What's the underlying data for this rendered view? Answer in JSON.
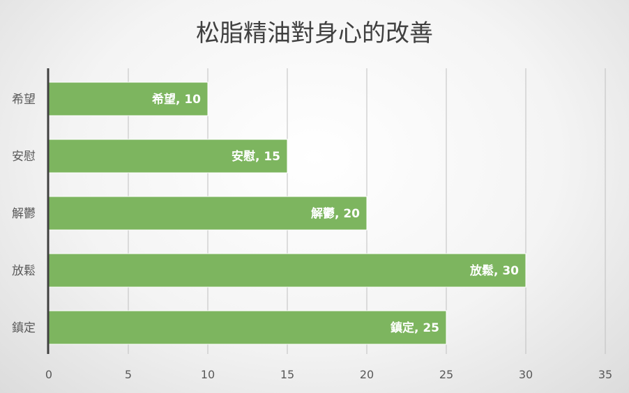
{
  "chart_data": {
    "type": "bar",
    "orientation": "horizontal",
    "title": "松脂精油對身心的改善",
    "categories": [
      "希望",
      "安慰",
      "解鬱",
      "放鬆",
      "鎮定"
    ],
    "values": [
      10,
      15,
      20,
      30,
      25
    ],
    "data_labels": [
      "希望, 10",
      "安慰, 15",
      "解鬱, 20",
      "放鬆, 30",
      "鎮定, 25"
    ],
    "xlim": [
      0,
      35
    ],
    "xticks": [
      0,
      5,
      10,
      15,
      20,
      25,
      30,
      35
    ],
    "grid": true,
    "legend": "none",
    "colors": {
      "bar": "#7db55f",
      "grid": "#bfbfbf",
      "axis": "#404040"
    }
  }
}
